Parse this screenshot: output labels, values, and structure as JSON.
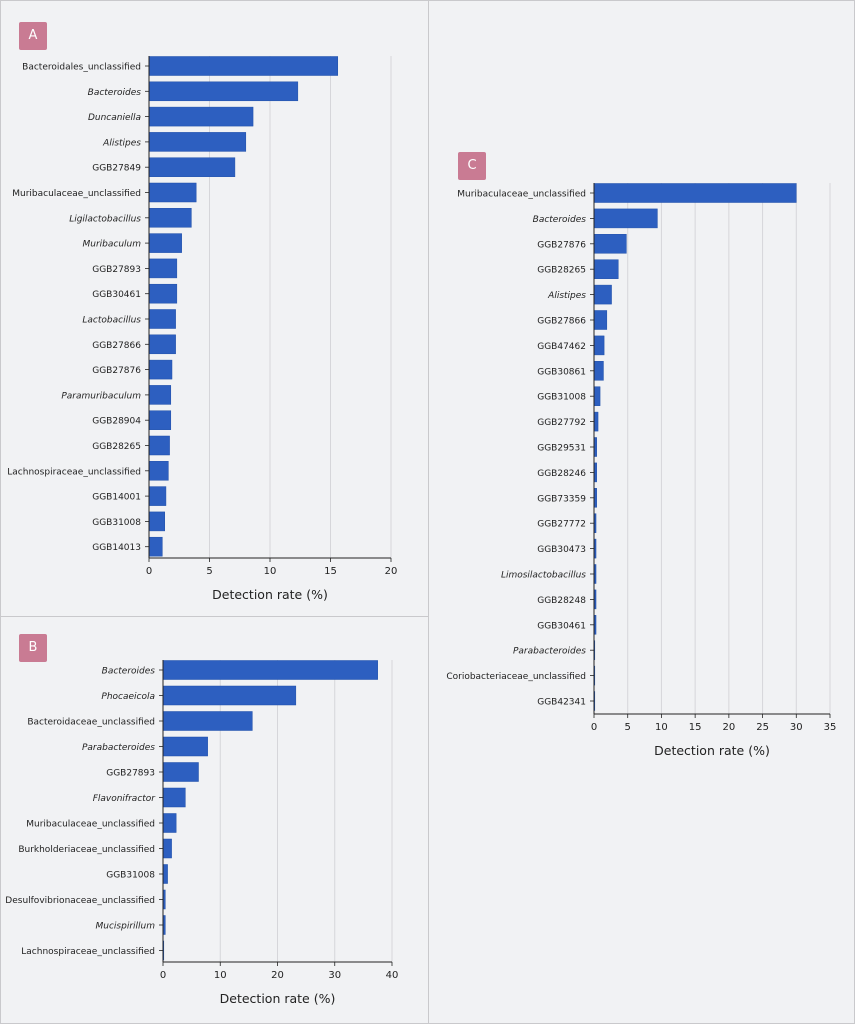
{
  "colors": {
    "bar": "#2d5fc0",
    "bar_stroke": "#1f4fa8",
    "badge": "#c97b93",
    "grid": "#d6d6da",
    "axis": "#222222",
    "text": "#222222"
  },
  "panels": [
    {
      "label": "A"
    },
    {
      "label": "B"
    },
    {
      "label": "C"
    }
  ],
  "chart_data": [
    {
      "type": "bar",
      "orientation": "horizontal",
      "panel": "A",
      "xlabel": "Detection rate (%)",
      "xlim": [
        0,
        20
      ],
      "xticks": [
        "0",
        "5",
        "10",
        "15",
        "20"
      ],
      "grid": true,
      "categories": [
        {
          "label": "Bacteroidales_unclassified",
          "italic": false,
          "value": 15.6
        },
        {
          "label": "Bacteroides",
          "italic": true,
          "value": 12.3
        },
        {
          "label": "Duncaniella",
          "italic": true,
          "value": 8.6
        },
        {
          "label": "Alistipes",
          "italic": true,
          "value": 8.0
        },
        {
          "label": "GGB27849",
          "italic": false,
          "value": 7.1
        },
        {
          "label": "Muribaculaceae_unclassified",
          "italic": false,
          "value": 3.9
        },
        {
          "label": "Ligilactobacillus",
          "italic": true,
          "value": 3.5
        },
        {
          "label": "Muribaculum",
          "italic": true,
          "value": 2.7
        },
        {
          "label": "GGB27893",
          "italic": false,
          "value": 2.3
        },
        {
          "label": "GGB30461",
          "italic": false,
          "value": 2.3
        },
        {
          "label": "Lactobacillus",
          "italic": true,
          "value": 2.2
        },
        {
          "label": "GGB27866",
          "italic": false,
          "value": 2.2
        },
        {
          "label": "GGB27876",
          "italic": false,
          "value": 1.9
        },
        {
          "label": "Paramuribaculum",
          "italic": true,
          "value": 1.8
        },
        {
          "label": "GGB28904",
          "italic": false,
          "value": 1.8
        },
        {
          "label": "GGB28265",
          "italic": false,
          "value": 1.7
        },
        {
          "label": "Lachnospiraceae_unclassified",
          "italic": false,
          "value": 1.6
        },
        {
          "label": "GGB14001",
          "italic": false,
          "value": 1.4
        },
        {
          "label": "GGB31008",
          "italic": false,
          "value": 1.3
        },
        {
          "label": "GGB14013",
          "italic": false,
          "value": 1.1
        }
      ]
    },
    {
      "type": "bar",
      "orientation": "horizontal",
      "panel": "B",
      "xlabel": "Detection rate (%)",
      "xlim": [
        0,
        40
      ],
      "xticks": [
        "0",
        "10",
        "20",
        "30",
        "40"
      ],
      "grid": true,
      "categories": [
        {
          "label": "Bacteroides",
          "italic": true,
          "value": 37.5
        },
        {
          "label": "Phocaeicola",
          "italic": true,
          "value": 23.2
        },
        {
          "label": "Bacteroidaceae_unclassified",
          "italic": false,
          "value": 15.6
        },
        {
          "label": "Parabacteroides",
          "italic": true,
          "value": 7.8
        },
        {
          "label": "GGB27893",
          "italic": false,
          "value": 6.2
        },
        {
          "label": "Flavonifractor",
          "italic": true,
          "value": 3.9
        },
        {
          "label": "Muribaculaceae_unclassified",
          "italic": false,
          "value": 2.3
        },
        {
          "label": "Burkholderiaceae_unclassified",
          "italic": false,
          "value": 1.5
        },
        {
          "label": "GGB31008",
          "italic": false,
          "value": 0.8
        },
        {
          "label": "Desulfovibrionaceae_unclassified",
          "italic": false,
          "value": 0.4
        },
        {
          "label": "Mucispirillum",
          "italic": true,
          "value": 0.4
        },
        {
          "label": "Lachnospiraceae_unclassified",
          "italic": false,
          "value": 0.1
        }
      ]
    },
    {
      "type": "bar",
      "orientation": "horizontal",
      "panel": "C",
      "xlabel": "Detection rate (%)",
      "xlim": [
        0,
        35
      ],
      "xticks": [
        "0",
        "5",
        "10",
        "15",
        "20",
        "25",
        "30",
        "35"
      ],
      "grid": true,
      "categories": [
        {
          "label": "Muribaculaceae_unclassified",
          "italic": false,
          "value": 30.0
        },
        {
          "label": "Bacteroides",
          "italic": true,
          "value": 9.4
        },
        {
          "label": "GGB27876",
          "italic": false,
          "value": 4.8
        },
        {
          "label": "GGB28265",
          "italic": false,
          "value": 3.6
        },
        {
          "label": "Alistipes",
          "italic": true,
          "value": 2.6
        },
        {
          "label": "GGB27866",
          "italic": false,
          "value": 1.9
        },
        {
          "label": "GGB47462",
          "italic": false,
          "value": 1.5
        },
        {
          "label": "GGB30861",
          "italic": false,
          "value": 1.4
        },
        {
          "label": "GGB31008",
          "italic": false,
          "value": 0.9
        },
        {
          "label": "GGB27792",
          "italic": false,
          "value": 0.6
        },
        {
          "label": "GGB29531",
          "italic": false,
          "value": 0.4
        },
        {
          "label": "GGB28246",
          "italic": false,
          "value": 0.4
        },
        {
          "label": "GGB73359",
          "italic": false,
          "value": 0.4
        },
        {
          "label": "GGB27772",
          "italic": false,
          "value": 0.3
        },
        {
          "label": "GGB30473",
          "italic": false,
          "value": 0.3
        },
        {
          "label": "Limosilactobacillus",
          "italic": true,
          "value": 0.3
        },
        {
          "label": "GGB28248",
          "italic": false,
          "value": 0.3
        },
        {
          "label": "GGB30461",
          "italic": false,
          "value": 0.3
        },
        {
          "label": "Parabacteroides",
          "italic": true,
          "value": 0.1
        },
        {
          "label": "Coriobacteriaceae_unclassified",
          "italic": false,
          "value": 0.1
        },
        {
          "label": "GGB42341",
          "italic": false,
          "value": 0.1
        }
      ]
    }
  ]
}
